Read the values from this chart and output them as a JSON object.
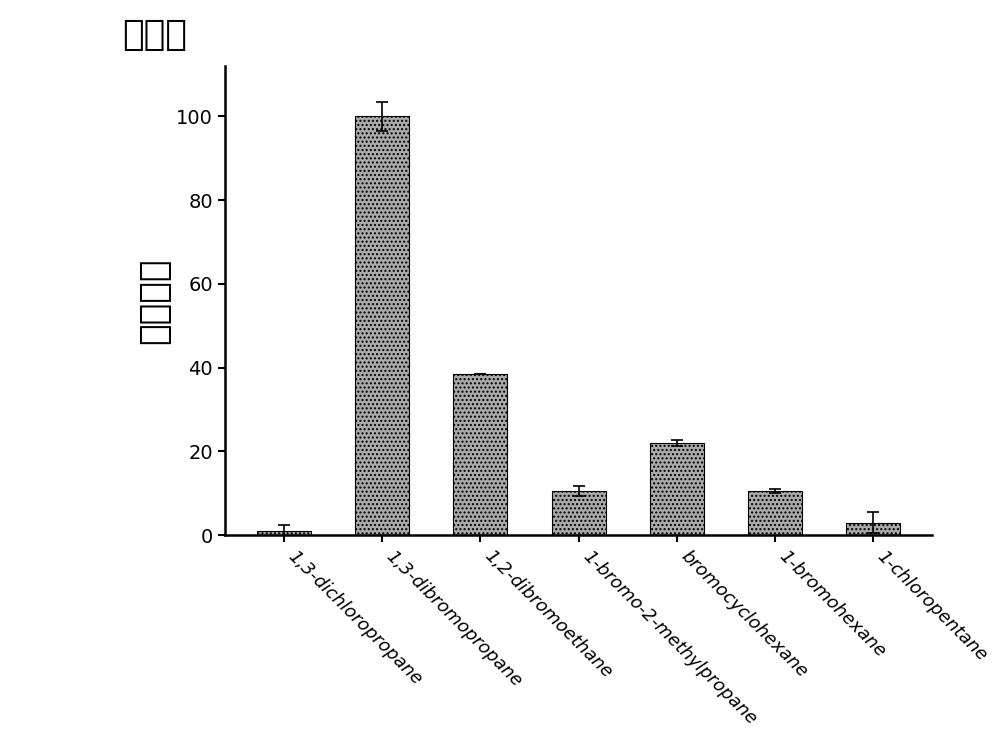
{
  "categories": [
    "1,3-dichloropropane",
    "1,3-dibromopropane",
    "1,2-dibromoethane",
    "1-bromo-2-methylpropane",
    "bromocyclohexane",
    "1-bromohexane",
    "1-chloropentane"
  ],
  "values": [
    1.0,
    100.0,
    38.5,
    10.5,
    22.0,
    10.5,
    3.0
  ],
  "errors": [
    1.5,
    3.5,
    0.0,
    1.2,
    0.8,
    0.5,
    2.5
  ],
  "bar_color": "#aaaaaa",
  "bar_hatch": "....",
  "ylabel_chinese": "相对活力",
  "ylabel_unit": "（％）",
  "ylim": [
    0,
    112
  ],
  "yticks": [
    0,
    20,
    40,
    60,
    80,
    100
  ],
  "bar_width": 0.55,
  "xlabel_rotation": -45,
  "xlabel_fontsize": 13,
  "ylabel_fontsize": 26,
  "tick_fontsize": 14,
  "figsize": [
    10.0,
    7.43
  ],
  "dpi": 100
}
